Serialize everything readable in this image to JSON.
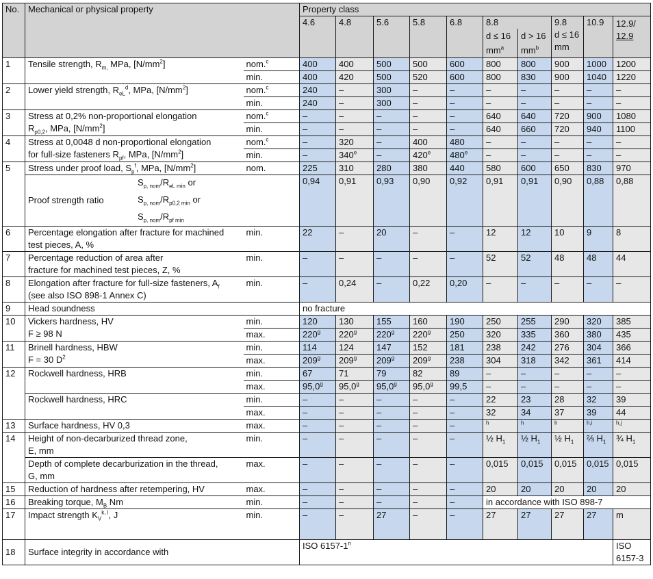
{
  "colors": {
    "blue": "#c7d8ee",
    "grey": "#e7e7e7",
    "header": "#d3d3d3"
  },
  "blue_columns": [
    0,
    2,
    4,
    6,
    8
  ],
  "header": {
    "no": "No.",
    "property": "Mechanical or physical property",
    "property_class": "Property class",
    "c46": "4.6",
    "c48": "4.8",
    "c56": "5.6",
    "c58": "5.8",
    "c68": "6.8",
    "c88": "8.8",
    "c88a": "d ≤ 16",
    "c88a_unit": "mm",
    "c88a_note": "a",
    "c88b": "d > 16",
    "c88b_unit": "mm",
    "c88b_note": "b",
    "c98": "9.8",
    "c98_cond": "d ≤ 16",
    "c98_unit": "mm",
    "c109": "10.9",
    "c129": "12.9/",
    "c129u": "12.9"
  },
  "rows": [
    {
      "no": "1",
      "groups": [
        {
          "label": [
            {
              "t": "Tensile strength, R"
            },
            {
              "sub": "m,"
            },
            {
              "t": " MPa, [N/mm"
            },
            {
              "sup": "2"
            },
            {
              "t": "]"
            }
          ],
          "lines": [
            {
              "q": "nom.",
              "qsup": "c",
              "values": [
                "400",
                "400",
                "500",
                "500",
                "600",
                "800",
                "800",
                "900",
                "1000",
                "1200"
              ]
            },
            {
              "q": "min.",
              "values": [
                "400",
                "420",
                "500",
                "520",
                "600",
                "800",
                "830",
                "900",
                "1040",
                "1220"
              ]
            }
          ]
        }
      ]
    },
    {
      "no": "2",
      "groups": [
        {
          "label": [
            {
              "t": "Lower yield strength, R"
            },
            {
              "sub": "eL"
            },
            {
              "sup": "d"
            },
            {
              "t": ", MPa, [N/mm"
            },
            {
              "sup": "2"
            },
            {
              "t": "]"
            }
          ],
          "lines": [
            {
              "q": "nom.",
              "qsup": "c",
              "values": [
                "240",
                "–",
                "300",
                "–",
                "–",
                "–",
                "–",
                "–",
                "–",
                "–"
              ]
            },
            {
              "q": "min.",
              "values": [
                "240",
                "–",
                "300",
                "–",
                "–",
                "–",
                "–",
                "–",
                "–",
                "–"
              ]
            }
          ]
        }
      ]
    },
    {
      "no": "3",
      "groups": [
        {
          "label": [
            {
              "t": "Stress at 0,2% non-proportional elongation"
            },
            {
              "br": true
            },
            {
              "t": "R"
            },
            {
              "sub": "p0,2"
            },
            {
              "t": ", MPa, [N/mm"
            },
            {
              "sup": "2"
            },
            {
              "t": "]"
            }
          ],
          "lines": [
            {
              "q": "nom.",
              "qsup": "c",
              "values": [
                "–",
                "–",
                "–",
                "–",
                "–",
                "640",
                "640",
                "720",
                "900",
                "1080"
              ]
            },
            {
              "q": "min.",
              "values": [
                "–",
                "–",
                "–",
                "–",
                "–",
                "640",
                "660",
                "720",
                "940",
                "1100"
              ]
            }
          ]
        }
      ]
    },
    {
      "no": "4",
      "groups": [
        {
          "label": [
            {
              "t": "Stress at 0,0048 d non-proportional elongation"
            },
            {
              "br": true
            },
            {
              "t": "for full-size fasteners R"
            },
            {
              "sub": "pf"
            },
            {
              "t": ", MPa, [N/mm"
            },
            {
              "sup": "2"
            },
            {
              "t": "]"
            }
          ],
          "lines": [
            {
              "q": "nom.",
              "qsup": "c",
              "values": [
                "–",
                "320",
                "–",
                "400",
                "480",
                "–",
                "–",
                "–",
                "–",
                "–"
              ]
            },
            {
              "q": "min.",
              "values": [
                "–",
                {
                  "v": "340",
                  "sup": "e"
                },
                "–",
                {
                  "v": "420",
                  "sup": "e"
                },
                {
                  "v": "480",
                  "sup": "e"
                },
                "–",
                "–",
                "–",
                "–",
                "–"
              ]
            }
          ]
        }
      ]
    },
    {
      "no": "5",
      "groups": [
        {
          "label": [
            {
              "t": "Stress under proof load, S"
            },
            {
              "sub": "p"
            },
            {
              "sup": "f"
            },
            {
              "t": ", MPa, [N/mm"
            },
            {
              "sup": "2"
            },
            {
              "t": "]"
            }
          ],
          "lines": [
            {
              "q": "nom.",
              "values": [
                "225",
                "310",
                "280",
                "380",
                "440",
                "580",
                "600",
                "650",
                "830",
                "970"
              ]
            }
          ]
        },
        {
          "ratio": true,
          "label": [
            {
              "t": "Proof strength ratio"
            }
          ],
          "formulas": [
            [
              {
                "t": "S"
              },
              {
                "sub": "p, nom"
              },
              {
                "t": "/R"
              },
              {
                "sub": "eL min"
              },
              {
                "t": " or"
              }
            ],
            [
              {
                "t": "S"
              },
              {
                "sub": "p, nom"
              },
              {
                "t": "/R"
              },
              {
                "sub": "p0,2 min"
              },
              {
                "t": " or"
              }
            ],
            [
              {
                "t": "S"
              },
              {
                "sub": "p, nom"
              },
              {
                "t": "/R"
              },
              {
                "sub": "pf min"
              }
            ]
          ],
          "lines": [
            {
              "values": [
                "0,94",
                "0,91",
                "0,93",
                "0,90",
                "0,92",
                "0,91",
                "0,91",
                "0,90",
                "0,88",
                "0,88"
              ]
            }
          ]
        }
      ]
    },
    {
      "no": "6",
      "groups": [
        {
          "label": [
            {
              "t": "Percentage elongation after fracture for machined"
            },
            {
              "br": true
            },
            {
              "t": "test pieces, A, %"
            }
          ],
          "lines": [
            {
              "q": "min.",
              "values": [
                "22",
                "–",
                "20",
                "–",
                "–",
                "12",
                "12",
                "10",
                "9",
                "8"
              ]
            }
          ]
        }
      ]
    },
    {
      "no": "7",
      "groups": [
        {
          "label": [
            {
              "t": "Percentage reduction of area after"
            },
            {
              "br": true
            },
            {
              "t": "fracture for machined test pieces, Z, %"
            }
          ],
          "lines": [
            {
              "q": "min.",
              "values": [
                "–",
                "–",
                "–",
                "–",
                "–",
                "52",
                "52",
                "48",
                "48",
                "44"
              ]
            }
          ]
        }
      ]
    },
    {
      "no": "8",
      "groups": [
        {
          "label": [
            {
              "t": "Elongation after fracture for full-size fasteners, A"
            },
            {
              "sub": "f"
            },
            {
              "br": true
            },
            {
              "t": "(see also ISO 898-1 Annex C)"
            }
          ],
          "lines": [
            {
              "q": "min.",
              "values": [
                "–",
                "0,24",
                "–",
                "0,22",
                "0,20",
                "–",
                "–",
                "–",
                "–",
                "–"
              ]
            }
          ]
        }
      ]
    },
    {
      "no": "9",
      "groups": [
        {
          "noQual": true,
          "label": [
            {
              "t": "Head soundness"
            }
          ],
          "lines": [
            {
              "values": [
                {
                  "v": "no fracture",
                  "span": 10,
                  "plain": true
                }
              ]
            }
          ]
        }
      ]
    },
    {
      "no": "10",
      "groups": [
        {
          "label": [
            {
              "t": "Vickers hardness, HV"
            },
            {
              "br": true
            },
            {
              "t": "F ≥ 98 N"
            }
          ],
          "lines": [
            {
              "q": "min.",
              "values": [
                "120",
                "130",
                "155",
                "160",
                "190",
                "250",
                "255",
                "290",
                "320",
                "385"
              ]
            },
            {
              "q": "max.",
              "values": [
                {
                  "v": "220",
                  "sup": "g"
                },
                {
                  "v": "220",
                  "sup": "g"
                },
                {
                  "v": "220",
                  "sup": "g"
                },
                {
                  "v": "220",
                  "sup": "g"
                },
                "250",
                "320",
                "335",
                "360",
                "380",
                "435"
              ]
            }
          ]
        }
      ]
    },
    {
      "no": "11",
      "groups": [
        {
          "label": [
            {
              "t": "Brinell hardness, HBW"
            },
            {
              "br": true
            },
            {
              "t": "F = 30 D"
            },
            {
              "sup": "2"
            }
          ],
          "lines": [
            {
              "q": "min.",
              "values": [
                "114",
                "124",
                "147",
                "152",
                "181",
                "238",
                "242",
                "276",
                "304",
                "366"
              ]
            },
            {
              "q": "max.",
              "values": [
                {
                  "v": "209",
                  "sup": "g"
                },
                {
                  "v": "209",
                  "sup": "g"
                },
                {
                  "v": "209",
                  "sup": "g"
                },
                {
                  "v": "209",
                  "sup": "g"
                },
                "238",
                "304",
                "318",
                "342",
                "361",
                "414"
              ]
            }
          ]
        }
      ]
    },
    {
      "no": "12",
      "groups": [
        {
          "label": [
            {
              "t": "Rockwell hardness, HRB"
            }
          ],
          "lines": [
            {
              "q": "min.",
              "values": [
                "67",
                "71",
                "79",
                "82",
                "89",
                "–",
                "–",
                "–",
                "–",
                "–"
              ]
            },
            {
              "q": "max.",
              "values": [
                {
                  "v": "95,0",
                  "sup": "g"
                },
                {
                  "v": "95,0",
                  "sup": "g"
                },
                {
                  "v": "95,0",
                  "sup": "g"
                },
                {
                  "v": "95,0",
                  "sup": "g"
                },
                "99,5",
                "–",
                "–",
                "–",
                "–",
                "–"
              ]
            }
          ]
        },
        {
          "label": [
            {
              "t": "Rockwell hardness, HRC"
            }
          ],
          "lines": [
            {
              "q": "min.",
              "values": [
                "–",
                "–",
                "–",
                "–",
                "–",
                "22",
                "23",
                "28",
                "32",
                "39"
              ]
            },
            {
              "q": "max.",
              "values": [
                "–",
                "–",
                "–",
                "–",
                "–",
                "32",
                "34",
                "37",
                "39",
                "44"
              ]
            }
          ]
        }
      ]
    },
    {
      "no": "13",
      "groups": [
        {
          "label": [
            {
              "t": "Surface hardness, HV 0,3"
            }
          ],
          "lines": [
            {
              "q": "max.",
              "values": [
                "–",
                "–",
                "–",
                "–",
                "–",
                {
                  "sup": "h"
                },
                {
                  "sup": "h"
                },
                {
                  "sup": "h"
                },
                {
                  "sup": "h,i"
                },
                {
                  "sup": "h,j"
                }
              ]
            }
          ]
        }
      ]
    },
    {
      "no": "14",
      "groups": [
        {
          "label": [
            {
              "t": "Height of non-decarburized thread zone,"
            },
            {
              "br": true
            },
            {
              "t": "E, mm"
            }
          ],
          "lines": [
            {
              "q": "min.",
              "values": [
                "–",
                "–",
                "–",
                "–",
                "–",
                {
                  "v": "½ H",
                  "sub": "1"
                },
                {
                  "v": "½ H",
                  "sub": "1"
                },
                {
                  "v": "½ H",
                  "sub": "1"
                },
                {
                  "v": "⅔ H",
                  "sub": "1"
                },
                {
                  "v": "¾ H",
                  "sub": "1"
                }
              ]
            }
          ]
        },
        {
          "label": [
            {
              "t": "Depth of complete decarburization in the thread,"
            },
            {
              "br": true
            },
            {
              "t": "G, mm"
            }
          ],
          "lines": [
            {
              "q": "max.",
              "values": [
                "–",
                "–",
                "–",
                "–",
                "–",
                "0,015",
                "0,015",
                "0,015",
                "0,015",
                "0,015"
              ]
            }
          ]
        }
      ]
    },
    {
      "no": "15",
      "groups": [
        {
          "label": [
            {
              "t": "Reduction of hardness after retempering, HV"
            }
          ],
          "lines": [
            {
              "q": "max.",
              "values": [
                "–",
                "–",
                "–",
                "–",
                "–",
                "20",
                "20",
                "20",
                "20",
                "20"
              ]
            }
          ]
        }
      ]
    },
    {
      "no": "16",
      "groups": [
        {
          "label": [
            {
              "t": "Breaking torque, M"
            },
            {
              "sub": "B"
            },
            {
              "t": " Nm"
            }
          ],
          "lines": [
            {
              "q": "min.",
              "values": [
                "–",
                "–",
                "–",
                "–",
                "–",
                {
                  "v": "in accordance with ISO 898-7",
                  "span": 5,
                  "plain": true
                }
              ]
            }
          ]
        }
      ]
    },
    {
      "no": "17",
      "groups": [
        {
          "label": [
            {
              "t": "Impact strength K"
            },
            {
              "sub": "V"
            },
            {
              "sup": "k, l"
            },
            {
              "t": ", J"
            }
          ],
          "lines": [
            {
              "q": "min.",
              "values": [
                "–",
                "–",
                "27",
                "–",
                "–",
                "27",
                "27",
                "27",
                "27",
                "m"
              ]
            }
          ]
        }
      ]
    },
    {
      "no": "18",
      "groups": [
        {
          "noQual": true,
          "middle": true,
          "label": [
            {
              "t": "Surface integrity in accordance with"
            }
          ],
          "lines": [
            {
              "values": [
                {
                  "v": "ISO 6157-1",
                  "sup": "n",
                  "span": 9,
                  "plain": true
                },
                {
                  "v": "ISO",
                  "v2": "6157-3",
                  "plain": true
                }
              ]
            }
          ]
        }
      ]
    }
  ]
}
